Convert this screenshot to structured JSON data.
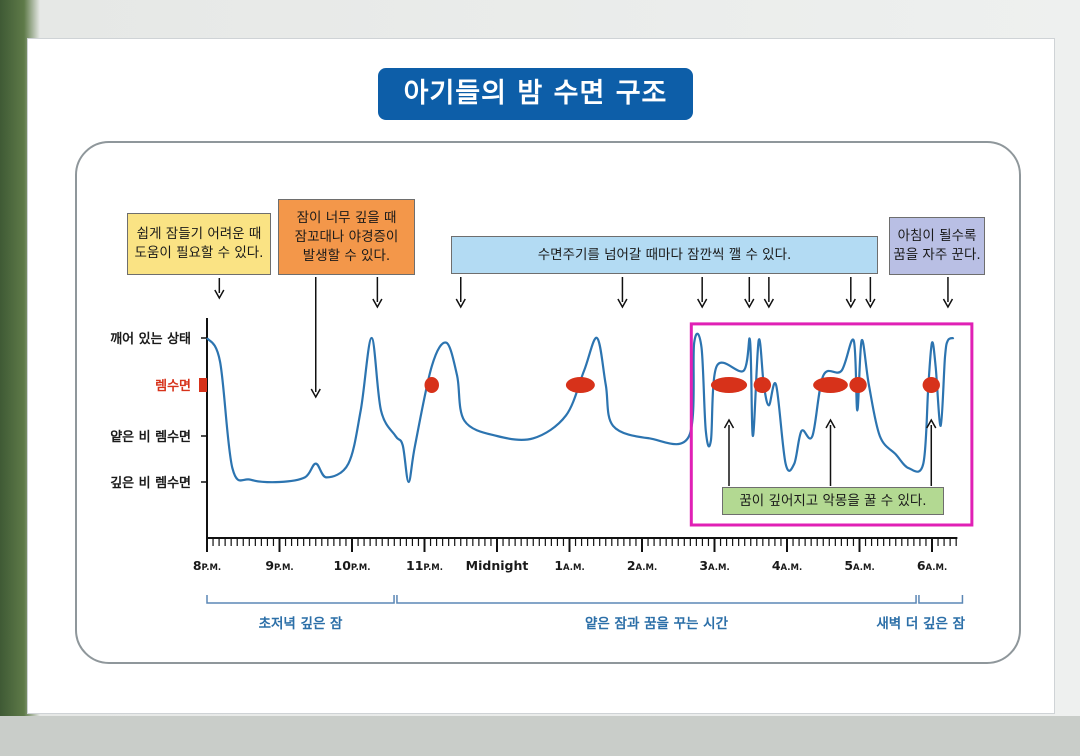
{
  "slide": {
    "title": "아기들의 밤 수면 구조",
    "notes": {
      "sleep_onset": "쉽게 잠들기 어려운 때\n도움이 필요할 수 있다.",
      "too_deep": "잠이 너무 깊을 때\n잠꼬대나 야경증이\n발생할 수 있다.",
      "cycle_wake": "수면주기를 넘어갈 때마다 잠깐씩 깰 수 있다.",
      "morning": "아침이 될수록\n꿈을 자주 꾼다.",
      "nightmare": "꿈이 깊어지고 악몽을 꿀 수 있다."
    },
    "phases": [
      {
        "label": "초저녁 깊은 잠"
      },
      {
        "label": "얕은 잠과 꿈을 꾸는 시간"
      },
      {
        "label": "새벽 더 깊은 잠"
      }
    ],
    "colors": {
      "title_bg": "#0d5ea8",
      "curve": "#2c74b0",
      "rem_marker": "#d7321a",
      "highlight": "#e020b5",
      "phase_text": "#2c6fa8",
      "note_yellow": "#fae384",
      "note_orange": "#f3974a",
      "note_blue": "#b3dbf3",
      "note_lavender": "#b9bfe4",
      "note_green": "#b3d992"
    }
  },
  "chart_data": {
    "type": "line",
    "title": "아기들의 밤 수면 구조",
    "y_levels": [
      {
        "value": 4,
        "label": "깨어 있는 상태"
      },
      {
        "value": 3,
        "label": "렘수면"
      },
      {
        "value": 2,
        "label": "얕은 비 렘수면"
      },
      {
        "value": 1,
        "label": "깊은 비 렘수면"
      }
    ],
    "ylim": [
      0.9,
      4.2
    ],
    "xlim": [
      20,
      30.3
    ],
    "x_ticks": [
      {
        "value": 20,
        "main": "8",
        "suffix": "P.M."
      },
      {
        "value": 21,
        "main": "9",
        "suffix": "P.M."
      },
      {
        "value": 22,
        "main": "10",
        "suffix": "P.M."
      },
      {
        "value": 23,
        "main": "11",
        "suffix": "P.M."
      },
      {
        "value": 24,
        "main": "Midnight",
        "suffix": ""
      },
      {
        "value": 25,
        "main": "1",
        "suffix": "A.M."
      },
      {
        "value": 26,
        "main": "2",
        "suffix": "A.M."
      },
      {
        "value": 27,
        "main": "3",
        "suffix": "A.M."
      },
      {
        "value": 28,
        "main": "4",
        "suffix": "A.M."
      },
      {
        "value": 29,
        "main": "5",
        "suffix": "A.M."
      },
      {
        "value": 30,
        "main": "6",
        "suffix": "A.M."
      }
    ],
    "series": [
      {
        "points": [
          [
            20,
            4
          ],
          [
            20.18,
            3.5
          ],
          [
            20.35,
            1.3
          ],
          [
            20.6,
            1.05
          ],
          [
            21,
            1.0
          ],
          [
            21.35,
            1.1
          ],
          [
            21.5,
            1.4
          ],
          [
            21.65,
            1.1
          ],
          [
            21.95,
            1.4
          ],
          [
            22.12,
            2.5
          ],
          [
            22.27,
            4.0
          ],
          [
            22.4,
            2.5
          ],
          [
            22.6,
            2.0
          ],
          [
            22.7,
            1.8
          ],
          [
            22.78,
            1.0
          ],
          [
            22.87,
            1.8
          ],
          [
            23.1,
            3.4
          ],
          [
            23.3,
            3.9
          ],
          [
            23.45,
            3.2
          ],
          [
            23.55,
            2.3
          ],
          [
            24,
            2.0
          ],
          [
            24.5,
            1.95
          ],
          [
            24.95,
            2.4
          ],
          [
            25.2,
            3.3
          ],
          [
            25.38,
            4.0
          ],
          [
            25.5,
            3.0
          ],
          [
            25.6,
            2.2
          ],
          [
            26.1,
            1.95
          ],
          [
            26.65,
            2.0
          ],
          [
            26.72,
            3.9
          ],
          [
            26.82,
            3.8
          ],
          [
            26.88,
            2.1
          ],
          [
            26.95,
            1.9
          ],
          [
            27.03,
            3.4
          ],
          [
            27.4,
            3.3
          ],
          [
            27.49,
            3.95
          ],
          [
            27.53,
            2.0
          ],
          [
            27.61,
            3.95
          ],
          [
            27.68,
            3.0
          ],
          [
            27.75,
            2.6
          ],
          [
            27.85,
            3.0
          ],
          [
            27.98,
            1.4
          ],
          [
            28.1,
            1.4
          ],
          [
            28.2,
            2.1
          ],
          [
            28.35,
            2.0
          ],
          [
            28.5,
            3.2
          ],
          [
            28.75,
            3.3
          ],
          [
            28.92,
            3.95
          ],
          [
            28.97,
            2.5
          ],
          [
            29.03,
            3.95
          ],
          [
            29.13,
            3.0
          ],
          [
            29.28,
            2.0
          ],
          [
            29.5,
            1.6
          ],
          [
            29.68,
            1.3
          ],
          [
            29.88,
            1.4
          ],
          [
            29.95,
            3.0
          ],
          [
            30,
            3.9
          ],
          [
            30.05,
            3.4
          ],
          [
            30.12,
            2.2
          ],
          [
            30.18,
            3.6
          ],
          [
            30.22,
            3.95
          ],
          [
            30.3,
            4.0
          ]
        ]
      }
    ],
    "rem_markers": [
      {
        "x": 23.1,
        "y": 3.0,
        "width_h": 0.1
      },
      {
        "x": 25.15,
        "y": 3.0,
        "width_h": 0.2
      },
      {
        "x": 27.2,
        "y": 3.0,
        "width_h": 0.25
      },
      {
        "x": 27.66,
        "y": 3.0,
        "width_h": 0.12
      },
      {
        "x": 28.6,
        "y": 3.0,
        "width_h": 0.24
      },
      {
        "x": 28.98,
        "y": 3.0,
        "width_h": 0.12
      },
      {
        "x": 29.99,
        "y": 3.0,
        "width_h": 0.12
      }
    ],
    "highlight_box": {
      "x_range": [
        26.68,
        30.55
      ],
      "y_range": [
        0.4,
        4.3
      ]
    },
    "phase_ranges": [
      [
        20,
        22.58
      ],
      [
        22.62,
        29.78
      ],
      [
        29.82,
        30.42
      ]
    ],
    "annotation_arrow_x": {
      "sleep_onset": [
        20.17
      ],
      "too_deep": [
        21.5
      ],
      "cycle_wake": [
        22.35,
        23.5,
        25.73,
        26.83,
        27.48,
        27.75,
        28.88,
        29.15
      ],
      "morning": [
        30.22
      ],
      "nightmare": [
        27.2,
        28.6,
        29.99
      ]
    }
  }
}
